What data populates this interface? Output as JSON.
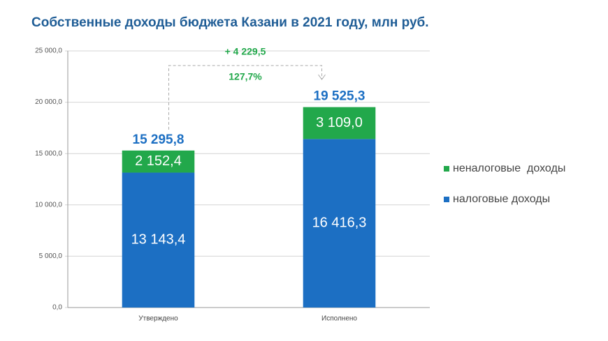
{
  "chart_data": {
    "type": "stacked_bar",
    "title": "Собственные доходы бюджета Казани в 2021 году, млн руб.",
    "categories": [
      "Утверждено",
      "Исполнено"
    ],
    "series": [
      {
        "name": "налоговые доходы",
        "color": "#1c6fc3",
        "values": [
          13143.4,
          16416.3
        ],
        "value_labels": [
          "13 143,4",
          "16 416,3"
        ]
      },
      {
        "name": "неналоговые  доходы",
        "color": "#22a84b",
        "values": [
          2152.4,
          3109.0
        ],
        "value_labels": [
          "2 152,4",
          "3 109,0"
        ]
      }
    ],
    "totals": [
      15295.8,
      19525.3
    ],
    "total_labels": [
      "15 295,8",
      "19 525,3"
    ],
    "difference": {
      "value": 4229.5,
      "label": "+ 4 229,5"
    },
    "percent": {
      "value": 127.7,
      "label": "127,7%"
    },
    "ylim": [
      0,
      25000
    ],
    "yticks": [
      {
        "value": 0,
        "label": "0,0"
      },
      {
        "value": 5000,
        "label": "5 000,0"
      },
      {
        "value": 10000,
        "label": "10 000,0"
      },
      {
        "value": 15000,
        "label": "15 000,0"
      },
      {
        "value": 20000,
        "label": "20 000,0"
      },
      {
        "value": 25000,
        "label": "25 000,0"
      }
    ],
    "grid": true,
    "legend": "right"
  }
}
